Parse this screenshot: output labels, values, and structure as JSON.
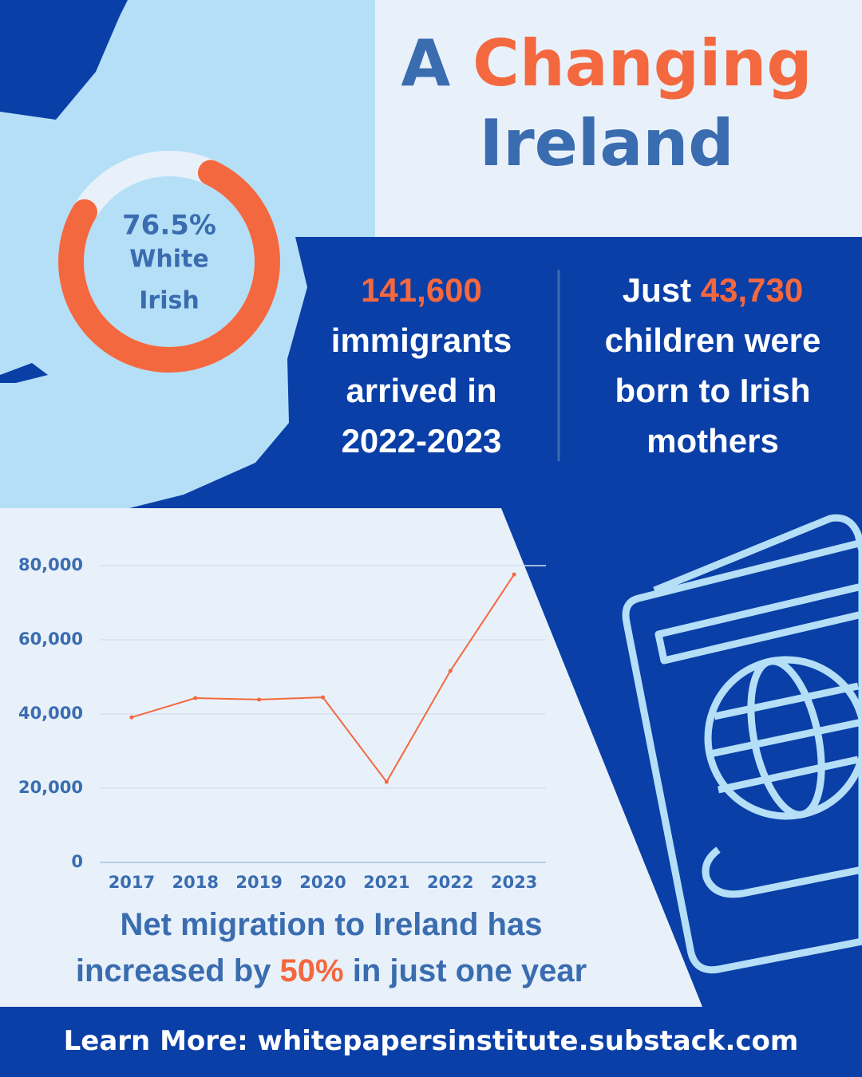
{
  "title": {
    "parts": [
      "A",
      "Changing",
      "Ireland"
    ]
  },
  "stats": [
    {
      "value": "141,600",
      "lines": [
        "immigrants",
        "arrived in",
        "2022-2023"
      ]
    },
    {
      "prefix": "Just",
      "value": "43,730",
      "lines": [
        "children were",
        "born to Irish",
        "mothers"
      ]
    }
  ],
  "chart_data": [
    {
      "type": "donut",
      "values": [
        76.5
      ],
      "value_labels": [
        "76.5%"
      ],
      "label_lines": [
        "White",
        "Irish"
      ],
      "color": "#f4683f",
      "track_color": "#e8f1fa"
    },
    {
      "type": "line",
      "categories": [
        "2017",
        "2018",
        "2019",
        "2020",
        "2021",
        "2022",
        "2023"
      ],
      "values": [
        39100,
        44300,
        43900,
        44500,
        21700,
        51600,
        77600
      ],
      "color": "#f4683f",
      "ylim": [
        0,
        80000
      ],
      "yticks": [
        0,
        {
          "value": 20000,
          "label": "20,000"
        },
        {
          "value": 40000,
          "label": "40,000"
        },
        {
          "value": 60000,
          "label": "60,000"
        },
        {
          "value": 80000,
          "label": "80,000"
        }
      ],
      "grid": true
    }
  ],
  "caption": {
    "line1": "Net migration to Ireland has",
    "line2": [
      "increased by",
      "50%",
      "in just one year"
    ]
  },
  "footer": "Learn More: whitepapersinstitute.substack.com"
}
